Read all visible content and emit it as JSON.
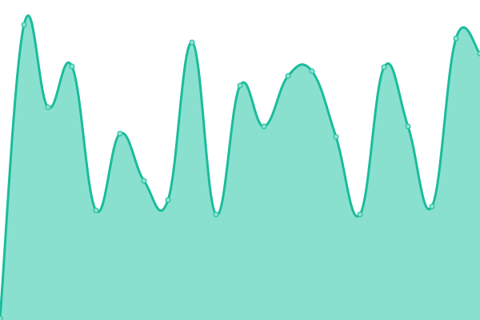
{
  "chart_data": {
    "type": "area",
    "title": "",
    "xlabel": "",
    "ylabel": "",
    "x": [
      0,
      1,
      2,
      3,
      4,
      5,
      6,
      7,
      8,
      9,
      10,
      11,
      12,
      13,
      14,
      15,
      16,
      17,
      18,
      19,
      20
    ],
    "values": [
      2,
      369,
      266,
      317,
      137,
      233,
      174,
      150,
      347,
      132,
      293,
      242,
      305,
      311,
      229,
      132,
      316,
      242,
      142,
      352,
      333
    ],
    "ylim": [
      0,
      400
    ],
    "xlim": [
      0,
      20
    ],
    "grid": false,
    "axes_visible": false,
    "smooth": true,
    "colors": {
      "line": "#1abc9c",
      "fill": "#8ae0cf",
      "point_fill": "#8ae0cf",
      "point_stroke": "#1abc9c"
    }
  }
}
